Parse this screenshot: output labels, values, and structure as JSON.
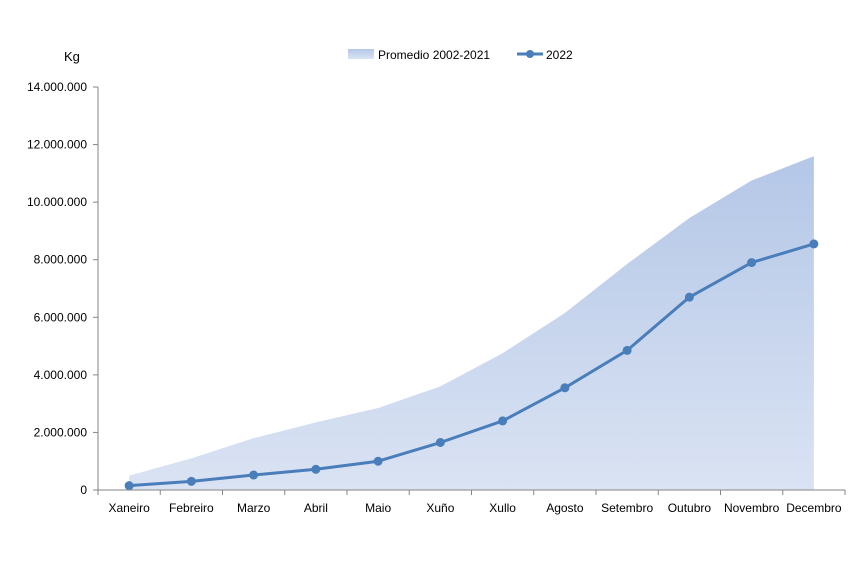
{
  "chart_data": {
    "type": "area",
    "unit_label": "Kg",
    "categories": [
      "Xaneiro",
      "Febreiro",
      "Marzo",
      "Abril",
      "Maio",
      "Xuño",
      "Xullo",
      "Agosto",
      "Setembro",
      "Outubro",
      "Novembro",
      "Decembro"
    ],
    "ylim": [
      0,
      14000000
    ],
    "yticks": [
      "0",
      "2.000.000",
      "4.000.000",
      "6.000.000",
      "8.000.000",
      "10.000.000",
      "12.000.000",
      "14.000.000"
    ],
    "ytick_values": [
      0,
      2000000,
      4000000,
      6000000,
      8000000,
      10000000,
      12000000,
      14000000
    ],
    "legend_position": "top-center",
    "series": [
      {
        "name": "Promedio 2002-2021",
        "kind": "area",
        "color": "#b4c7e7",
        "values": [
          500000,
          1100000,
          1800000,
          2350000,
          2850000,
          3600000,
          4750000,
          6150000,
          7850000,
          9450000,
          10750000,
          11600000
        ]
      },
      {
        "name": "2022",
        "kind": "line",
        "color": "#4a7ebb",
        "values": [
          150000,
          300000,
          520000,
          720000,
          1000000,
          1650000,
          2400000,
          3550000,
          4850000,
          6700000,
          7900000,
          8550000
        ]
      }
    ]
  }
}
